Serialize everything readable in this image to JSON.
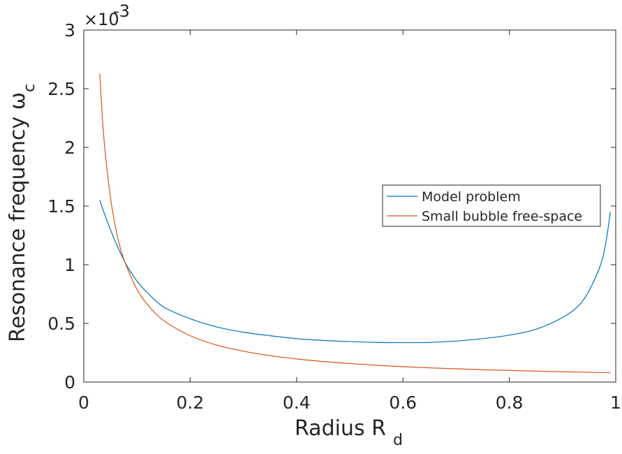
{
  "chart_data": {
    "type": "line",
    "xlabel": "Radius R",
    "xlabel_sub": "d",
    "ylabel": "Resonance frequency ω",
    "ylabel_sub": "c",
    "exponent_prefix": "×10",
    "exponent_power": "-3",
    "xlim": [
      0,
      1
    ],
    "ylim": [
      0,
      3
    ],
    "xticks": [
      {
        "value": 0,
        "label": "0"
      },
      {
        "value": 0.2,
        "label": "0.2"
      },
      {
        "value": 0.4,
        "label": "0.4"
      },
      {
        "value": 0.6,
        "label": "0.6"
      },
      {
        "value": 0.8,
        "label": "0.8"
      },
      {
        "value": 1,
        "label": "1"
      }
    ],
    "yticks": [
      {
        "value": 0,
        "label": "0"
      },
      {
        "value": 0.5,
        "label": "0.5"
      },
      {
        "value": 1,
        "label": "1"
      },
      {
        "value": 1.5,
        "label": "1.5"
      },
      {
        "value": 2,
        "label": "2"
      },
      {
        "value": 2.5,
        "label": "2.5"
      },
      {
        "value": 3,
        "label": "3"
      }
    ],
    "legend_position": "center-right",
    "series": [
      {
        "name": "Model problem",
        "color": "#0072BD",
        "x": [
          0.03,
          0.04,
          0.05,
          0.06,
          0.07,
          0.08,
          0.1,
          0.12,
          0.15,
          0.2,
          0.25,
          0.3,
          0.35,
          0.4,
          0.45,
          0.5,
          0.55,
          0.6,
          0.65,
          0.7,
          0.75,
          0.8,
          0.85,
          0.9,
          0.93,
          0.95,
          0.97,
          0.98,
          0.99
        ],
        "y": [
          1.55,
          1.42,
          1.3,
          1.19,
          1.09,
          1.0,
          0.86,
          0.76,
          0.64,
          0.54,
          0.47,
          0.425,
          0.395,
          0.37,
          0.355,
          0.345,
          0.338,
          0.336,
          0.338,
          0.35,
          0.37,
          0.4,
          0.45,
          0.55,
          0.65,
          0.78,
          0.98,
          1.15,
          1.45
        ]
      },
      {
        "name": "Small bubble free-space",
        "color": "#D95319",
        "x": [
          0.03,
          0.035,
          0.04,
          0.05,
          0.06,
          0.07,
          0.08,
          0.1,
          0.12,
          0.15,
          0.2,
          0.25,
          0.3,
          0.35,
          0.4,
          0.45,
          0.5,
          0.55,
          0.6,
          0.65,
          0.7,
          0.75,
          0.8,
          0.85,
          0.9,
          0.95,
          0.99
        ],
        "y": [
          2.63,
          2.25,
          1.97,
          1.58,
          1.31,
          1.12,
          0.99,
          0.79,
          0.66,
          0.525,
          0.395,
          0.315,
          0.263,
          0.225,
          0.197,
          0.175,
          0.158,
          0.143,
          0.131,
          0.121,
          0.113,
          0.105,
          0.099,
          0.093,
          0.088,
          0.083,
          0.08
        ]
      }
    ]
  }
}
